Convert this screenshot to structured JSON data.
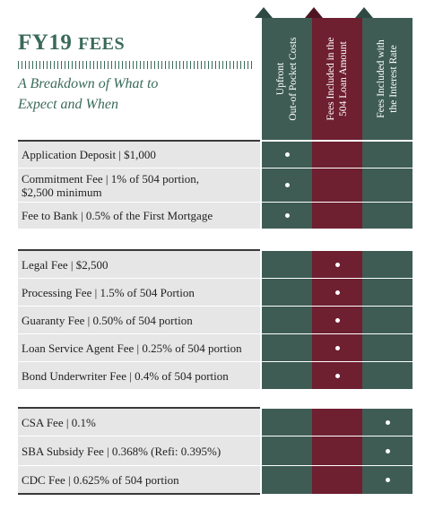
{
  "title_prefix": "FY19 ",
  "title_caps": "FEES",
  "subtitle_line1": "A Breakdown of What to",
  "subtitle_line2": "Expect and When",
  "columns": [
    {
      "line1": "Upfront",
      "line2": "Out-of Pocket Costs",
      "color": "#3e5c54"
    },
    {
      "line1": "Fees Included in the",
      "line2": "504 Loan Amount",
      "color": "#6e1f30"
    },
    {
      "line1": "Fees Included with",
      "line2": "the Interest Rate",
      "color": "#3e5c54"
    }
  ],
  "groups": [
    [
      {
        "label1": "Application Deposit | $1,000",
        "label2": "",
        "column": 0
      },
      {
        "label1": "Commitment Fee | 1% of 504 portion,",
        "label2": "$2,500 minimum",
        "column": 0
      },
      {
        "label1": "Fee to Bank | 0.5% of the First Mortgage",
        "label2": "",
        "column": 0
      }
    ],
    [
      {
        "label1": "Legal Fee | $2,500",
        "label2": "",
        "column": 1
      },
      {
        "label1": "Processing Fee | 1.5% of 504 Portion",
        "label2": "",
        "column": 1
      },
      {
        "label1": "Guaranty Fee | 0.50% of 504 portion",
        "label2": "",
        "column": 1
      },
      {
        "label1": "Loan Service Agent Fee | 0.25% of 504 portion",
        "label2": "",
        "column": 1
      },
      {
        "label1": "Bond Underwriter Fee | 0.4% of 504 portion",
        "label2": "",
        "column": 1
      }
    ],
    [
      {
        "label1": "CSA Fee | 0.1%",
        "label2": "",
        "column": 2
      },
      {
        "label1": "SBA Subsidy Fee | 0.368% (Refi:  0.395%)",
        "label2": "",
        "column": 2
      },
      {
        "label1": "CDC Fee | 0.625% of 504 portion",
        "label2": "",
        "column": 2
      }
    ]
  ]
}
